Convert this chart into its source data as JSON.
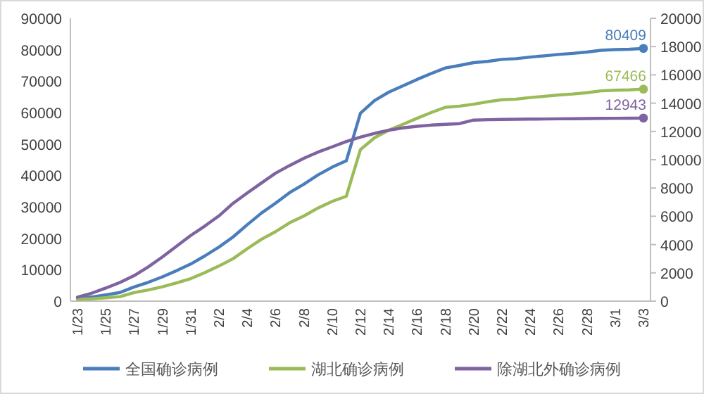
{
  "chart_data": {
    "type": "line",
    "categories": [
      "1/23",
      null,
      "1/25",
      null,
      "1/27",
      null,
      "1/29",
      null,
      "1/31",
      null,
      "2/2",
      null,
      "2/4",
      null,
      "2/6",
      null,
      "2/8",
      null,
      "2/10",
      null,
      "2/12",
      null,
      "2/14",
      null,
      "2/16",
      null,
      "2/18",
      null,
      "2/20",
      null,
      "2/22",
      null,
      "2/24",
      null,
      "2/26",
      null,
      "2/28",
      null,
      "3/1",
      null,
      "3/3"
    ],
    "series": [
      {
        "name": "全国确诊病例",
        "color": "#4a7ebb",
        "values": [
          830,
          1287,
          1975,
          2744,
          4515,
          5974,
          7711,
          9692,
          11791,
          14380,
          17205,
          20438,
          24324,
          28018,
          31161,
          34546,
          37198,
          40171,
          42638,
          44653,
          59804,
          63851,
          66492,
          68500,
          70548,
          72436,
          74185,
          75002,
          75891,
          76288,
          76936,
          77150,
          77658,
          78064,
          78497,
          78824,
          79251,
          79824,
          80026,
          80151,
          80409
        ],
        "value_labels": [
          null,
          null,
          null,
          null,
          null,
          null,
          null,
          null,
          null,
          null,
          null,
          null,
          null,
          null,
          null,
          null,
          null,
          null,
          null,
          null,
          null,
          null,
          null,
          null,
          null,
          null,
          null,
          null,
          null,
          null,
          null,
          null,
          null,
          null,
          null,
          null,
          null,
          null,
          null,
          null,
          "80409"
        ]
      },
      {
        "name": "湖北确诊病例",
        "color": "#9bbb59",
        "values": [
          549,
          729,
          1052,
          1423,
          2714,
          3554,
          4586,
          5806,
          7153,
          9074,
          11177,
          13522,
          16678,
          19665,
          22112,
          24953,
          27100,
          29631,
          31728,
          33366,
          48206,
          51986,
          54406,
          56249,
          58182,
          59989,
          61682,
          62031,
          62662,
          63454,
          64084,
          64287,
          64786,
          65187,
          65596,
          65914,
          66337,
          66907,
          67103,
          67217,
          67466
        ],
        "value_labels": [
          null,
          null,
          null,
          null,
          null,
          null,
          null,
          null,
          null,
          null,
          null,
          null,
          null,
          null,
          null,
          null,
          null,
          null,
          null,
          null,
          null,
          null,
          null,
          null,
          null,
          null,
          null,
          null,
          null,
          null,
          null,
          null,
          null,
          null,
          null,
          null,
          null,
          null,
          null,
          null,
          "67466"
        ]
      },
      {
        "name": "除湖北外确诊病例",
        "color": "#7e63a0",
        "axis": "y2",
        "values": [
          281,
          558,
          923,
          1321,
          1801,
          2420,
          3125,
          3886,
          4638,
          5306,
          6028,
          6916,
          7646,
          8353,
          9049,
          9593,
          10098,
          10540,
          10910,
          11287,
          11598,
          11865,
          12086,
          12251,
          12366,
          12447,
          12503,
          12550,
          12800,
          12830,
          12850,
          12860,
          12870,
          12880,
          12890,
          12900,
          12910,
          12920,
          12930,
          12935,
          12943
        ],
        "value_labels": [
          null,
          null,
          null,
          null,
          null,
          null,
          null,
          null,
          null,
          null,
          null,
          null,
          null,
          null,
          null,
          null,
          null,
          null,
          null,
          null,
          null,
          null,
          null,
          null,
          null,
          null,
          null,
          null,
          null,
          null,
          null,
          null,
          null,
          null,
          null,
          null,
          null,
          null,
          null,
          null,
          "12943"
        ]
      }
    ],
    "ylim": [
      0,
      90000
    ],
    "yticks": [
      0,
      10000,
      20000,
      30000,
      40000,
      50000,
      60000,
      70000,
      80000,
      90000
    ],
    "y2lim": [
      0,
      20000
    ],
    "y2ticks": [
      0,
      2000,
      4000,
      6000,
      8000,
      10000,
      12000,
      14000,
      16000,
      18000,
      20000
    ],
    "grid": false,
    "legend": "bottom"
  }
}
